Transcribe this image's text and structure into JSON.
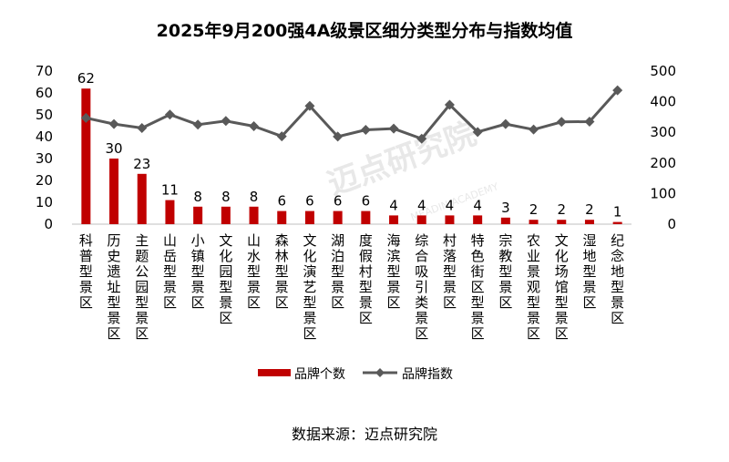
{
  "chart_data": {
    "type": "bar+line",
    "title": "2025年9月200强4A级景区细分类型分布与指数均值",
    "categories": [
      "科普型景区",
      "历史遗址型景区",
      "主题公园型景区",
      "山岳型景区",
      "小镇型景区",
      "文化园型景区",
      "山水型景区",
      "森林型景区",
      "文化演艺型景区",
      "湖泊型景区",
      "度假村型景区",
      "海滨型景区",
      "综合吸引类景区",
      "村落型景区",
      "特色街区型景区",
      "宗教型景区",
      "农业景观型景区",
      "文化场馆型景区",
      "湿地型景区",
      "纪念地型景区"
    ],
    "series": [
      {
        "name": "品牌个数",
        "axis": "left",
        "color": "#c00000",
        "values": [
          62,
          30,
          23,
          11,
          8,
          8,
          8,
          6,
          6,
          6,
          6,
          4,
          4,
          4,
          4,
          3,
          2,
          2,
          2,
          1
        ]
      },
      {
        "name": "品牌指数",
        "axis": "right",
        "color": "#595959",
        "values": [
          347,
          327,
          314,
          358,
          325,
          337,
          320,
          287,
          386,
          286,
          308,
          312,
          279,
          390,
          301,
          327,
          309,
          334,
          335,
          437
        ]
      }
    ],
    "left_axis": {
      "ylim": [
        0,
        70
      ],
      "ticks": [
        0,
        10,
        20,
        30,
        40,
        50,
        60,
        70
      ]
    },
    "right_axis": {
      "ylim": [
        0,
        500
      ],
      "ticks": [
        0,
        100,
        200,
        300,
        400,
        500
      ]
    },
    "legend_position": "bottom",
    "grid": false
  },
  "source_text": "数据来源：迈点研究院",
  "watermark": "迈点研究院",
  "watermark_sub": "MEADIN ACADEMY"
}
